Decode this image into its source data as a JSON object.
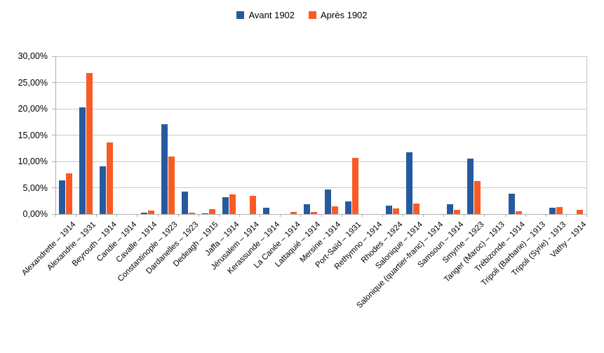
{
  "chart_data": {
    "type": "bar",
    "title": "",
    "xlabel": "",
    "ylabel": "",
    "grid": true,
    "legend_position": "top-center",
    "ylim": [
      0,
      30
    ],
    "ytick_step": 5,
    "ytick_labels": [
      "0,00%",
      "5,00%",
      "10,00%",
      "15,00%",
      "20,00%",
      "25,00%",
      "30,00%"
    ],
    "value_unit": "%",
    "categories": [
      "Alexandrette – 1914",
      "Alexandrie – 1931",
      "Beyrouth – 1914",
      "Candie – 1914",
      "Cavalle – 1914",
      "Constantinople – 1923",
      "Dardanelles – 1923",
      "Dedeagh – 1915",
      "Jaffa – 1914",
      "Jérusalem – 1914",
      "Kerassunde – 1914",
      "La Canée – 1914",
      "Lattaquié – 1914",
      "Mersine - 1914",
      "Port-Saïd – 1931",
      "Rethymno – 1914",
      "Rhodes – 1924",
      "Salonique – 1914",
      "Salonique (quartier-franc) – 1914",
      "Samsoun – 1914",
      "Smyrne – 1923",
      "Tanger (Maroc) – 1913",
      "Trébizonde – 1914",
      "Tripoli (Barbarie) – 1913",
      "Tripoli (Syrie) - 1913",
      "Vathy – 1914"
    ],
    "series": [
      {
        "name": "Avant 1902",
        "color": "#265A9E",
        "values": [
          6.4,
          20.3,
          9.0,
          0,
          0.3,
          17.0,
          4.2,
          0.1,
          3.2,
          0,
          1.2,
          0,
          1.8,
          4.7,
          2.4,
          0,
          1.6,
          11.7,
          0,
          1.9,
          10.5,
          0,
          3.8,
          0,
          1.2,
          0
        ]
      },
      {
        "name": "Après 1902",
        "color": "#FA5B25",
        "values": [
          7.7,
          26.8,
          13.6,
          0,
          0.7,
          10.9,
          0.2,
          0.9,
          3.7,
          3.4,
          0,
          0.4,
          0.4,
          1.5,
          10.7,
          0,
          1.1,
          2.0,
          0,
          0.8,
          6.3,
          0,
          0.5,
          0,
          1.3,
          0.8
        ]
      }
    ]
  },
  "colors": {
    "background": "#FFFFFF",
    "gridline": "#C8C8C8",
    "axis": "#AFAFAF",
    "text": "#000000"
  }
}
